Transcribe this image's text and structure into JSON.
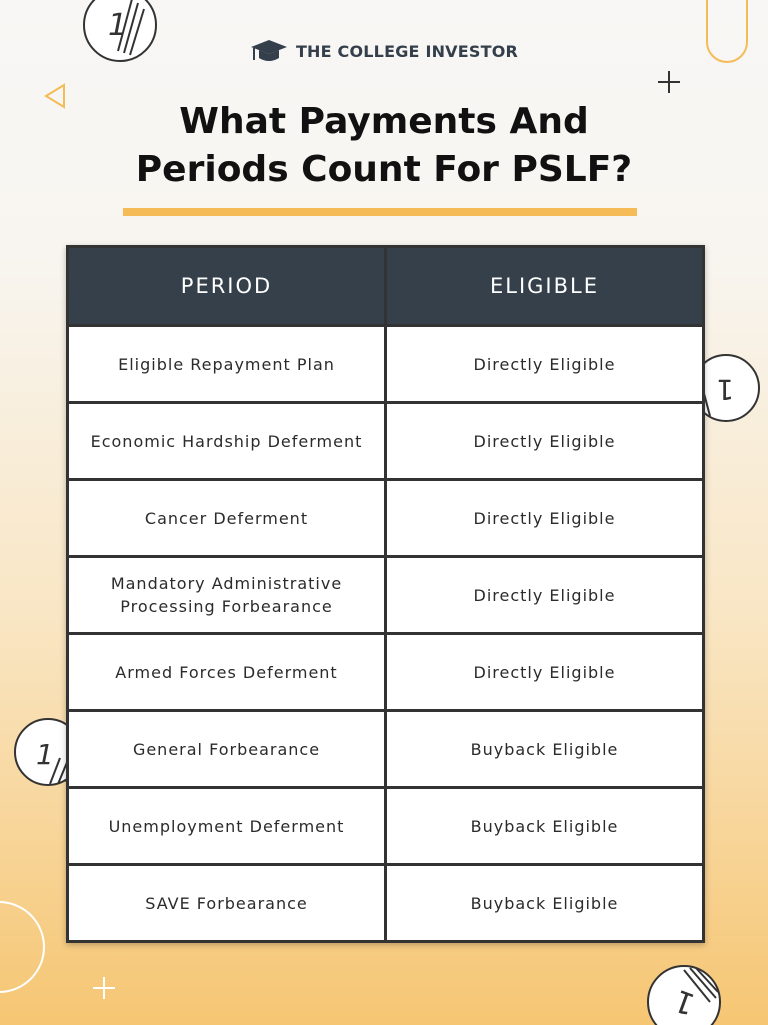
{
  "brand": {
    "name": "THE COLLEGE INVESTOR",
    "icon": "graduation-cap-icon"
  },
  "title": {
    "line1": "What Payments And",
    "line2": "Periods Count For PSLF?"
  },
  "colors": {
    "header": "#35404b",
    "accent": "#f4bb56"
  },
  "table": {
    "headers": [
      "PERIOD",
      "ELIGIBLE"
    ],
    "rows": [
      {
        "period": "Eligible Repayment Plan",
        "eligible": "Directly Eligible"
      },
      {
        "period": "Economic Hardship Deferment",
        "eligible": "Directly Eligible"
      },
      {
        "period": "Cancer Deferment",
        "eligible": "Directly Eligible"
      },
      {
        "period": "Mandatory Administrative Processing Forbearance",
        "eligible": "Directly Eligible"
      },
      {
        "period": "Armed Forces Deferment",
        "eligible": "Directly Eligible"
      },
      {
        "period": "General Forbearance",
        "eligible": "Buyback Eligible"
      },
      {
        "period": "Unemployment Deferment",
        "eligible": "Buyback Eligible"
      },
      {
        "period": "SAVE Forbearance",
        "eligible": "Buyback Eligible"
      }
    ]
  }
}
